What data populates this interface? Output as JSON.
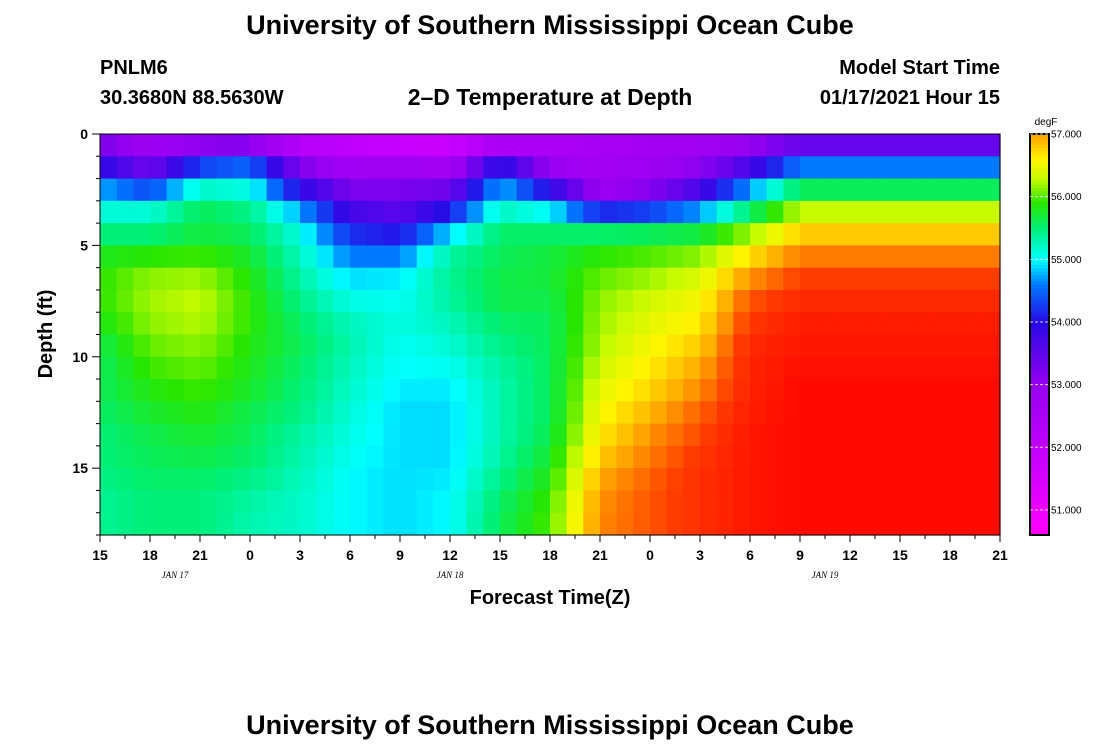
{
  "header": {
    "title": "University of Southern Mississippi Ocean Cube",
    "station_id": "PNLM6",
    "location": "30.3680N 88.5630W",
    "plot_title": "2–D Temperature at Depth",
    "model_start_label": "Model Start Time",
    "model_start_value": "01/17/2021 Hour 15"
  },
  "footer": {
    "title": "University of Southern Mississippi Ocean Cube"
  },
  "chart_data": {
    "type": "heatmap",
    "title": "2–D Temperature at Depth",
    "xlabel": "Forecast Time(Z)",
    "ylabel": "Depth (ft)",
    "x_ticks": [
      "15",
      "18",
      "21",
      "0",
      "3",
      "6",
      "9",
      "12",
      "15",
      "18",
      "21",
      "0",
      "3",
      "6",
      "9",
      "12",
      "15",
      "18",
      "21"
    ],
    "x_range_hours": [
      0,
      54
    ],
    "day_labels": [
      {
        "label": "JAN 17",
        "hour": 4.5
      },
      {
        "label": "JAN 18",
        "hour": 21
      },
      {
        "label": "JAN 19",
        "hour": 43.5
      }
    ],
    "y_ticks": [
      0,
      5,
      10,
      15
    ],
    "ylim": [
      0,
      18
    ],
    "colorbar": {
      "units": "degF",
      "ticks": [
        "51.000",
        "52.000",
        "53.000",
        "54.000",
        "55.000",
        "56.000",
        "57.000"
      ],
      "range": [
        50.6,
        57.0
      ]
    },
    "columns_sampled": [
      {
        "hour": 0,
        "temps": [
          53.1,
          53.4,
          54.5,
          55.0,
          55.3,
          55.7,
          55.9,
          55.9,
          55.9,
          55.7,
          55.6,
          55.6,
          55.6,
          55.5,
          55.5,
          55.5,
          55.4,
          55.4
        ]
      },
      {
        "hour": 3,
        "temps": [
          52.6,
          53.0,
          53.7,
          55.0,
          55.3,
          55.7,
          56.1,
          56.2,
          56.2,
          56.1,
          56.0,
          55.9,
          55.8,
          55.7,
          55.6,
          55.6,
          55.5,
          55.5
        ]
      },
      {
        "hour": 6,
        "temps": [
          52.4,
          53.8,
          54.8,
          55.6,
          55.6,
          55.8,
          56.1,
          56.3,
          56.3,
          56.2,
          56.1,
          56.0,
          55.9,
          55.8,
          55.7,
          55.6,
          55.5,
          55.5
        ]
      },
      {
        "hour": 9,
        "temps": [
          52.1,
          54.2,
          54.8,
          55.4,
          55.5,
          55.7,
          55.8,
          55.9,
          55.9,
          55.9,
          55.8,
          55.8,
          55.7,
          55.6,
          55.6,
          55.5,
          55.4,
          55.3
        ]
      },
      {
        "hour": 12,
        "temps": [
          51.6,
          53.0,
          53.4,
          54.5,
          55.0,
          55.2,
          55.3,
          55.4,
          55.5,
          55.6,
          55.6,
          55.5,
          55.5,
          55.4,
          55.3,
          55.3,
          55.2,
          55.2
        ]
      },
      {
        "hour": 15,
        "temps": [
          51.6,
          52.5,
          53.0,
          53.5,
          54.0,
          54.4,
          54.8,
          55.0,
          55.2,
          55.3,
          55.3,
          55.2,
          55.2,
          55.1,
          55.1,
          55.0,
          55.0,
          55.0
        ]
      },
      {
        "hour": 18,
        "temps": [
          51.4,
          52.4,
          53.2,
          53.3,
          53.8,
          54.3,
          54.9,
          55.0,
          55.1,
          55.1,
          55.0,
          55.0,
          54.9,
          54.9,
          54.9,
          54.9,
          54.9,
          54.9
        ]
      },
      {
        "hour": 21,
        "temps": [
          51.2,
          52.4,
          53.0,
          53.7,
          54.5,
          55.3,
          55.4,
          55.4,
          55.3,
          55.2,
          55.1,
          55.0,
          54.9,
          54.9,
          54.9,
          54.9,
          55.0,
          55.0
        ]
      },
      {
        "hour": 24,
        "temps": [
          51.6,
          53.5,
          54.6,
          55.0,
          55.5,
          55.6,
          55.6,
          55.7,
          55.6,
          55.5,
          55.4,
          55.3,
          55.3,
          55.3,
          55.3,
          55.4,
          55.5,
          55.6
        ]
      },
      {
        "hour": 27,
        "temps": [
          52.3,
          52.6,
          53.3,
          54.6,
          55.4,
          55.7,
          55.7,
          55.7,
          55.6,
          55.6,
          55.6,
          55.6,
          55.6,
          55.6,
          55.7,
          55.8,
          55.9,
          56.0
        ]
      },
      {
        "hour": 30,
        "temps": [
          52.6,
          52.6,
          52.8,
          53.0,
          55.3,
          55.8,
          56.0,
          56.1,
          56.2,
          56.2,
          56.3,
          56.4,
          56.5,
          56.6,
          56.7,
          56.9,
          57.0,
          57.1
        ]
      },
      {
        "hour": 33,
        "temps": [
          52.7,
          52.7,
          53.0,
          53.3,
          55.3,
          55.9,
          56.1,
          56.3,
          56.4,
          56.5,
          56.6,
          56.7,
          56.8,
          57.0,
          57.1,
          57.2,
          57.3,
          57.3
        ]
      },
      {
        "hour": 36,
        "temps": [
          52.7,
          52.8,
          53.4,
          54.0,
          55.4,
          56.0,
          56.3,
          56.5,
          56.6,
          56.7,
          56.9,
          57.0,
          57.2,
          57.3,
          57.4,
          57.5,
          57.5,
          57.5
        ]
      },
      {
        "hour": 39,
        "temps": [
          52.8,
          53.2,
          54.2,
          55.2,
          55.9,
          56.5,
          56.9,
          57.2,
          57.4,
          57.5,
          57.6,
          57.6,
          57.6,
          57.7,
          57.7,
          57.7,
          57.7,
          57.7
        ]
      },
      {
        "hour": 42,
        "temps": [
          52.9,
          54.0,
          55.2,
          56.0,
          56.6,
          57.0,
          57.3,
          57.5,
          57.6,
          57.7,
          57.7,
          57.8,
          57.8,
          57.8,
          57.8,
          57.8,
          57.8,
          57.8
        ]
      }
    ]
  }
}
